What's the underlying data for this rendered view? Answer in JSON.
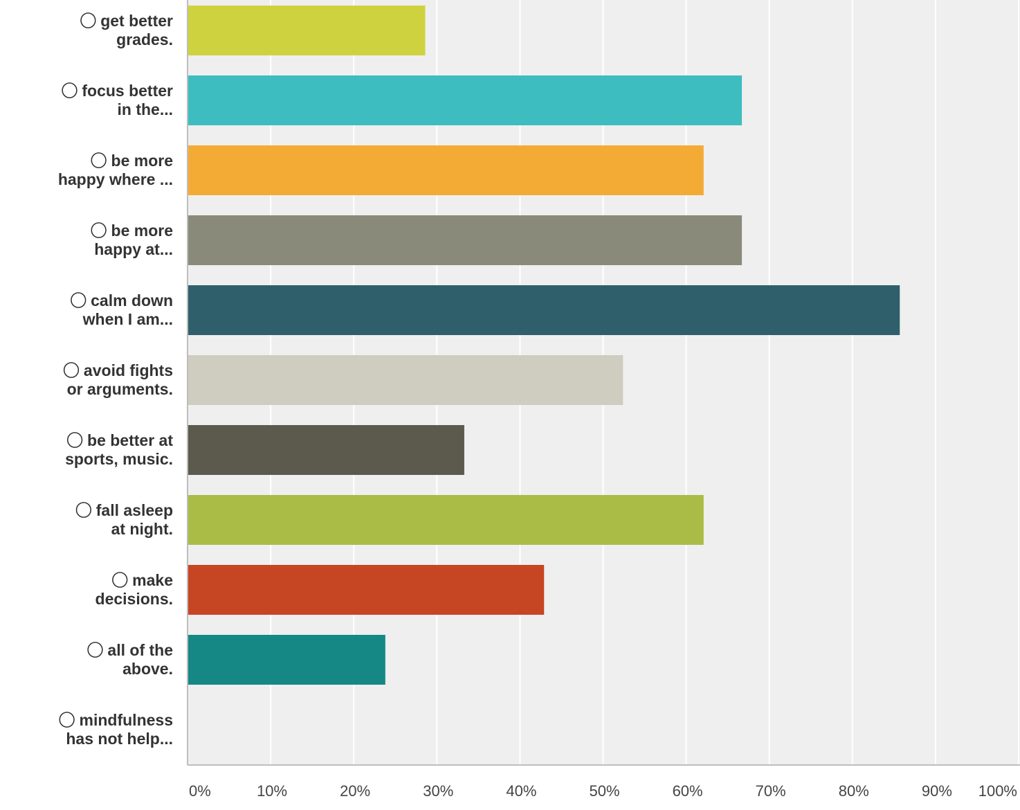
{
  "chart_data": {
    "type": "bar",
    "orientation": "horizontal",
    "categories": [
      [
        "⃝ get better",
        "grades."
      ],
      [
        "⃝ focus better",
        "in the..."
      ],
      [
        "⃝ be more",
        "happy where ..."
      ],
      [
        "⃝ be more",
        "happy at..."
      ],
      [
        "⃝ calm down",
        "when I am..."
      ],
      [
        "⃝ avoid fights",
        "or arguments."
      ],
      [
        "⃝ be better at",
        "sports, music."
      ],
      [
        "⃝ fall asleep",
        "at night."
      ],
      [
        "⃝ make",
        "decisions."
      ],
      [
        "⃝ all of the",
        "above."
      ],
      [
        "⃝ mindfulness",
        "has not help..."
      ]
    ],
    "values": [
      28.6,
      66.7,
      62.1,
      66.7,
      85.7,
      52.4,
      33.3,
      62.1,
      42.9,
      23.8,
      0
    ],
    "colors": [
      "#cfd23f",
      "#3dbdbf",
      "#f4ab35",
      "#8a8a7a",
      "#2f5f6b",
      "#cfcdc0",
      "#5c5a4c",
      "#aabc46",
      "#c64523",
      "#158886",
      "#cccccc"
    ],
    "xlim": [
      0,
      100
    ],
    "xticks": [
      "0%",
      "10%",
      "20%",
      "30%",
      "40%",
      "50%",
      "60%",
      "70%",
      "80%",
      "90%",
      "100%"
    ],
    "grid": true,
    "title": "",
    "xlabel": "",
    "ylabel": ""
  }
}
